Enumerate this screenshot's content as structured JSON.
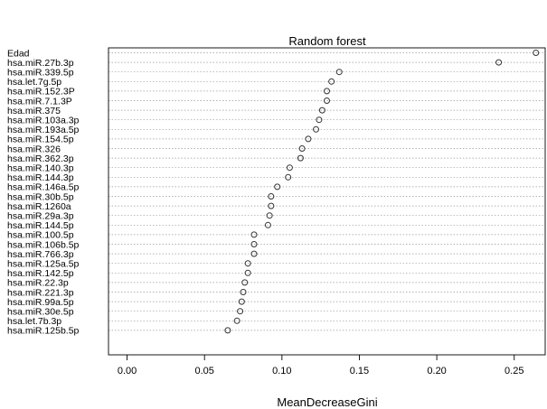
{
  "chart_data": {
    "type": "scatter",
    "title": "Random forest",
    "xlabel": "MeanDecreaseGini",
    "ylabel": "",
    "xlim": [
      -0.012,
      0.27
    ],
    "xticks": [
      "0.00",
      "0.05",
      "0.10",
      "0.15",
      "0.20",
      "0.25"
    ],
    "xtick_values": [
      0.0,
      0.05,
      0.1,
      0.15,
      0.2,
      0.25
    ],
    "grid": "horizontal dotted",
    "marker_color": "#333333",
    "categories": [
      "Edad",
      "hsa.miR.27b.3p",
      "hsa.miR.339.5p",
      "hsa.let.7g.5p",
      "hsa.miR.152.3P",
      "hsa.miR.7.1.3P",
      "hsa.miR.375",
      "hsa.miR.103a.3p",
      "hsa.miR.193a.5p",
      "hsa.miR.154.5p",
      "hsa.miR.326",
      "hsa.miR.362.3p",
      "hsa.miR.140.3p",
      "hsa.miR.144.3p",
      "hsa.miR.146a.5p",
      "hsa.miR.30b.5p",
      "hsa.miR.1260a",
      "hsa.miR.29a.3p",
      "hsa.miR.144.5p",
      "hsa.miR.100.5p",
      "hsa.miR.106b.5p",
      "hsa.miR.766.3p",
      "hsa.miR.125a.5p",
      "hsa.miR.142.5p",
      "hsa.miR.22.3p",
      "hsa.miR.221.3p",
      "hsa.miR.99a.5p",
      "hsa.miR.30e.5p",
      "hsa.let.7b.3p",
      "hsa.miR.125b.5p"
    ],
    "values": [
      0.264,
      0.24,
      0.137,
      0.132,
      0.129,
      0.129,
      0.126,
      0.124,
      0.122,
      0.117,
      0.113,
      0.112,
      0.105,
      0.104,
      0.097,
      0.093,
      0.093,
      0.092,
      0.091,
      0.082,
      0.082,
      0.082,
      0.078,
      0.078,
      0.076,
      0.075,
      0.074,
      0.073,
      0.071,
      0.065
    ]
  }
}
